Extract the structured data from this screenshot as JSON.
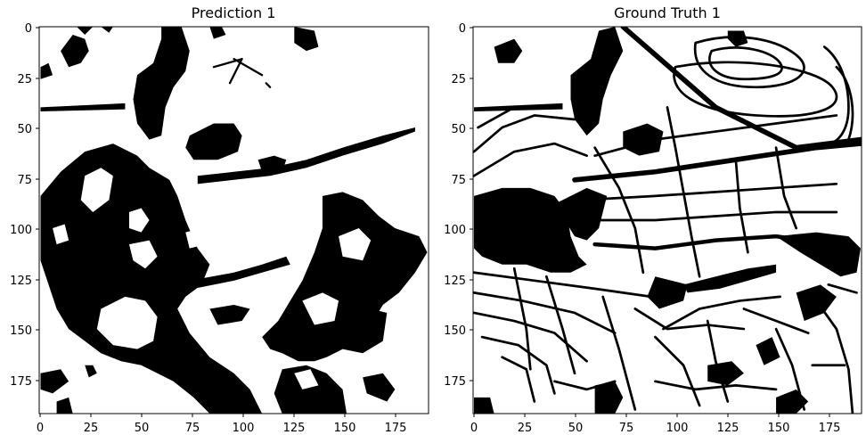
{
  "figure": {
    "panels": [
      {
        "title": "Prediction 1",
        "x_ticks": [
          "0",
          "25",
          "50",
          "75",
          "100",
          "125",
          "150",
          "175"
        ],
        "y_ticks": [
          "0",
          "25",
          "50",
          "75",
          "100",
          "125",
          "150",
          "175"
        ]
      },
      {
        "title": "Ground Truth 1",
        "x_ticks": [
          "0",
          "25",
          "50",
          "75",
          "100",
          "125",
          "150",
          "175"
        ],
        "y_ticks": [
          "0",
          "25",
          "50",
          "75",
          "100",
          "125",
          "150",
          "175"
        ]
      }
    ]
  },
  "colors": {
    "foreground": "#000000",
    "background": "#ffffff"
  }
}
